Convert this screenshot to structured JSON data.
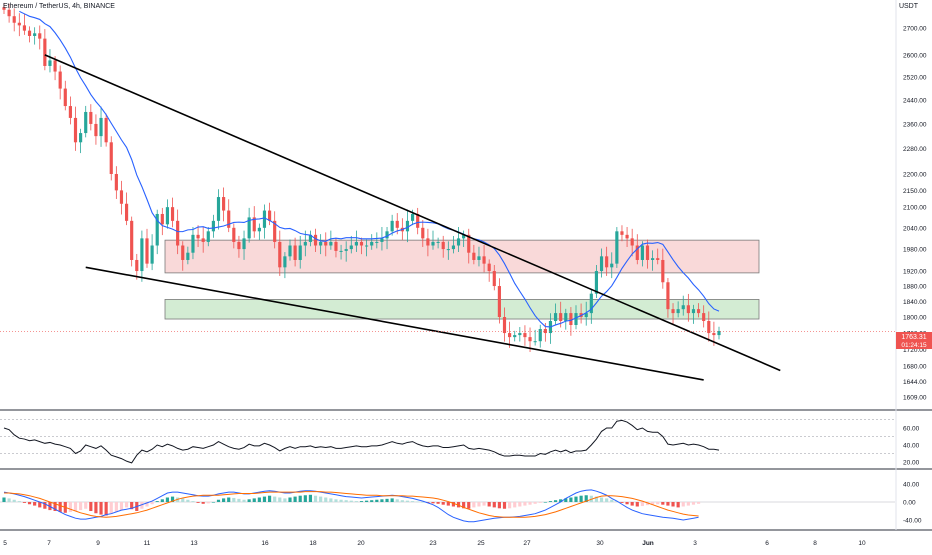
{
  "header": {
    "symbol_line": "Ethereum / TetherUS, 4h, BINANCE",
    "currency": "USDT"
  },
  "price_label": {
    "value": "1763.31",
    "countdown": "01:24:15"
  },
  "colors": {
    "up": "#26a69a",
    "down": "#ef5350",
    "ma": "#2962ff",
    "resistance_fill": "#f9d9d9",
    "resistance_stroke": "#7a7a7a",
    "support_fill": "#d3ecd3",
    "macd_line": "#2962ff",
    "signal_line": "#ff6d00",
    "hist_up_strong": "#26a69a",
    "hist_up_weak": "#b2dfdb",
    "hist_down_strong": "#ef5350",
    "hist_down_weak": "#ffcdd2",
    "rsi_line": "#131722"
  },
  "chart_data": [
    {
      "type": "candlestick",
      "y_axis_ticks": [
        "2700.00",
        "2600.00",
        "2520.00",
        "2440.00",
        "2360.00",
        "2280.00",
        "2200.00",
        "2150.00",
        "2100.00",
        "2040.00",
        "1980.00",
        "1920.00",
        "1880.00",
        "1840.00",
        "1800.00",
        "1760.00",
        "1720.00",
        "1680.00",
        "1644.00",
        "1609.00"
      ],
      "x_axis_ticks": [
        "5",
        "7",
        "9",
        "11",
        "13",
        "16",
        "18",
        "20",
        "23",
        "25",
        "27",
        "30",
        "Jun",
        "3",
        "6",
        "8",
        "10"
      ],
      "ylim": [
        1600,
        2760
      ],
      "y_scale": "log",
      "grid": false,
      "close_price": 1763.31,
      "closes": [
        2770,
        2745,
        2720,
        2710,
        2690,
        2670,
        2680,
        2660,
        2560,
        2580,
        2540,
        2480,
        2420,
        2380,
        2300,
        2330,
        2400,
        2360,
        2320,
        2380,
        2300,
        2200,
        2150,
        2110,
        2060,
        1950,
        1920,
        2010,
        1940,
        1990,
        2080,
        2050,
        2100,
        2060,
        1990,
        1950,
        1970,
        2020,
        2010,
        2000,
        2030,
        2060,
        2130,
        2090,
        2040,
        2000,
        1980,
        2010,
        2070,
        2030,
        2040,
        2090,
        2060,
        2000,
        1930,
        1960,
        1990,
        1950,
        1990,
        2000,
        2020,
        1990,
        2000,
        1990,
        2000,
        1975,
        1975,
        1980,
        1990,
        2000,
        1990,
        1990,
        2000,
        2000,
        2010,
        2030,
        2060,
        2040,
        2030,
        2060,
        2080,
        2040,
        2010,
        1990,
        2000,
        2000,
        1980,
        1980,
        1990,
        2010,
        2020,
        1970,
        1950,
        1960,
        1940,
        1920,
        1880,
        1800,
        1760,
        1750,
        1755,
        1760,
        1750,
        1740,
        1740,
        1770,
        1760,
        1790,
        1810,
        1790,
        1810,
        1780,
        1810,
        1800,
        1810,
        1860,
        1920,
        1960,
        1930,
        1940,
        2030,
        2020,
        2010,
        1990,
        1950,
        1990,
        1950,
        1955,
        1950,
        1890,
        1820,
        1810,
        1820,
        1830,
        1810,
        1820,
        1810,
        1790,
        1760,
        1755,
        1765
      ],
      "ma_series": "moving average (blue)",
      "zones": [
        {
          "name": "resistance",
          "from_bar": 16,
          "to_bar": 146,
          "low": 1915,
          "high": 2005
        },
        {
          "name": "support",
          "from_bar": 16,
          "to_bar": 146,
          "low": 1795,
          "high": 1845
        }
      ],
      "trendlines": [
        {
          "name": "upper",
          "from": {
            "bar": 8,
            "price": 2600
          },
          "to": {
            "bar": 152,
            "price": 1670
          }
        },
        {
          "name": "lower",
          "from": {
            "bar": 16,
            "price": 1930
          },
          "to": {
            "bar": 137,
            "price": 1648
          }
        }
      ]
    },
    {
      "type": "line",
      "name": "RSI",
      "y_axis_ticks": [
        "60.00",
        "40.00",
        "20.00"
      ],
      "ylim": [
        15,
        85
      ],
      "values": [
        60,
        58,
        52,
        48,
        47,
        45,
        46,
        44,
        42,
        43,
        41,
        40,
        38,
        36,
        30,
        33,
        40,
        38,
        36,
        39,
        34,
        28,
        26,
        24,
        21,
        19,
        28,
        34,
        32,
        35,
        40,
        38,
        41,
        39,
        36,
        34,
        35,
        38,
        37,
        36,
        38,
        40,
        44,
        41,
        38,
        36,
        35,
        37,
        41,
        39,
        39,
        42,
        40,
        37,
        33,
        36,
        38,
        36,
        38,
        38,
        39,
        37,
        38,
        37,
        38,
        36,
        36,
        37,
        38,
        39,
        38,
        38,
        39,
        39,
        40,
        42,
        44,
        42,
        41,
        43,
        44,
        41,
        39,
        38,
        39,
        39,
        37,
        37,
        38,
        39,
        40,
        36,
        35,
        36,
        35,
        34,
        32,
        29,
        27,
        27,
        28,
        28,
        27,
        27,
        27,
        30,
        29,
        32,
        34,
        32,
        34,
        31,
        33,
        33,
        34,
        40,
        47,
        56,
        60,
        60,
        68,
        69,
        67,
        63,
        58,
        60,
        56,
        55,
        55,
        50,
        41,
        40,
        41,
        42,
        40,
        41,
        40,
        38,
        35,
        35,
        34
      ]
    },
    {
      "type": "histogram",
      "name": "MACD",
      "y_axis_ticks": [
        "40.00",
        "0.00",
        "-40.00"
      ],
      "ylim": [
        -60,
        60
      ],
      "histogram": [
        10,
        8,
        5,
        2,
        -2,
        -5,
        -8,
        -12,
        -15,
        -18,
        -20,
        -22,
        -24,
        -22,
        -20,
        -18,
        -15,
        -20,
        -25,
        -28,
        -30,
        -26,
        -22,
        -18,
        -12,
        -16,
        -20,
        -15,
        -10,
        -5,
        2,
        6,
        10,
        12,
        10,
        8,
        5,
        2,
        -2,
        -4,
        -3,
        0,
        5,
        8,
        10,
        9,
        7,
        5,
        6,
        8,
        10,
        12,
        14,
        12,
        10,
        8,
        10,
        12,
        14,
        15,
        16,
        14,
        12,
        10,
        8,
        6,
        5,
        4,
        3,
        2,
        2,
        3,
        4,
        5,
        6,
        7,
        8,
        6,
        4,
        3,
        2,
        1,
        0,
        -2,
        -3,
        -4,
        -6,
        -8,
        -10,
        -12,
        -14,
        -15,
        -12,
        -10,
        -8,
        -10,
        -12,
        -14,
        -15,
        -14,
        -12,
        -10,
        -8,
        -6,
        -4,
        -2,
        0,
        2,
        4,
        6,
        8,
        10,
        12,
        14,
        15,
        14,
        12,
        10,
        8,
        5,
        2,
        -2,
        -5,
        -8,
        -10,
        -9,
        -7,
        -6,
        -5,
        -6,
        -8,
        -10,
        -12,
        -10,
        -8,
        -6,
        -4
      ],
      "macd": [
        22,
        20,
        18,
        15,
        12,
        8,
        4,
        0,
        -4,
        -10,
        -16,
        -22,
        -28,
        -32,
        -36,
        -38,
        -38,
        -36,
        -34,
        -32,
        -28,
        -26,
        -22,
        -18,
        -16,
        -14,
        -10,
        -6,
        -2,
        2,
        8,
        14,
        20,
        22,
        22,
        20,
        18,
        16,
        14,
        13,
        13,
        15,
        18,
        20,
        22,
        22,
        20,
        18,
        18,
        20,
        22,
        24,
        25,
        24,
        22,
        20,
        20,
        22,
        24,
        25,
        25,
        24,
        22,
        20,
        18,
        16,
        14,
        12,
        11,
        10,
        9,
        10,
        11,
        12,
        13,
        14,
        15,
        14,
        12,
        10,
        8,
        5,
        2,
        -2,
        -6,
        -12,
        -20,
        -28,
        -34,
        -38,
        -42,
        -44,
        -44,
        -42,
        -40,
        -38,
        -36,
        -35,
        -34,
        -34,
        -33,
        -32,
        -30,
        -28,
        -26,
        -22,
        -18,
        -12,
        -6,
        0,
        8,
        14,
        20,
        24,
        26,
        27,
        24,
        20,
        15,
        8,
        2,
        -5,
        -12,
        -18,
        -22,
        -26,
        -28,
        -30,
        -32,
        -34,
        -35,
        -36,
        -38,
        -40,
        -38,
        -36,
        -34
      ],
      "signal": [
        20,
        20,
        19,
        18,
        16,
        14,
        11,
        8,
        4,
        0,
        -4,
        -8,
        -12,
        -16,
        -20,
        -24,
        -27,
        -30,
        -32,
        -33,
        -34,
        -33,
        -32,
        -30,
        -28,
        -26,
        -24,
        -21,
        -18,
        -14,
        -10,
        -6,
        -2,
        2,
        6,
        9,
        11,
        13,
        14,
        15,
        15,
        15,
        15,
        16,
        17,
        18,
        19,
        19,
        19,
        19,
        20,
        21,
        22,
        22,
        22,
        22,
        22,
        22,
        22,
        23,
        23,
        23,
        23,
        22,
        22,
        21,
        20,
        19,
        18,
        17,
        16,
        15,
        15,
        15,
        14,
        14,
        14,
        14,
        14,
        13,
        13,
        12,
        11,
        10,
        9,
        7,
        4,
        1,
        -3,
        -7,
        -12,
        -16,
        -20,
        -24,
        -27,
        -30,
        -32,
        -33,
        -34,
        -34,
        -34,
        -34,
        -34,
        -33,
        -32,
        -30,
        -28,
        -25,
        -22,
        -18,
        -14,
        -10,
        -6,
        -2,
        2,
        6,
        10,
        13,
        14,
        14,
        13,
        12,
        10,
        8,
        5,
        2,
        -2,
        -6,
        -10,
        -14,
        -18,
        -21,
        -24,
        -27,
        -29,
        -30,
        -31
      ]
    }
  ]
}
